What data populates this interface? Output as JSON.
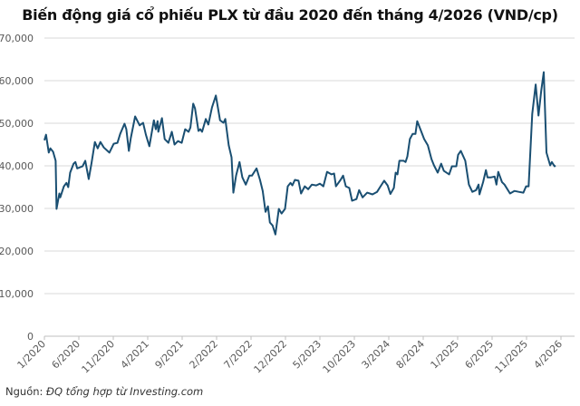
{
  "title": "Biến động giá cổ phiếu PLX từ đầu 2020 đến tháng 4/2026 (VND/cp)",
  "source": {
    "prefix": "Nguồn:",
    "text": "ĐQ tổng hợp từ Investing.com"
  },
  "colors": {
    "line": "#1a4f72",
    "grid": "#d9d9d9",
    "axis_text": "#595959"
  },
  "chart_data": {
    "type": "line",
    "title": "Biến động giá cổ phiếu PLX từ đầu 2020 đến tháng 4/2026 (VND/cp)",
    "xlabel": "",
    "ylabel": "",
    "ylim": [
      0,
      70000
    ],
    "xlim": [
      "2020-01-01",
      "2026-04-01"
    ],
    "grid": "horizontal",
    "yticks": [
      "0",
      "10,000",
      "20,000",
      "30,000",
      "40,000",
      "50,000",
      "60,000",
      "70,000"
    ],
    "xticks": [
      "1/2020",
      "6/2020",
      "11/2020",
      "4/2021",
      "9/2021",
      "2/2022",
      "7/2022",
      "12/2022",
      "5/2023",
      "10/2023",
      "3/2024",
      "8/2024",
      "1/2025",
      "6/2025",
      "11/2025",
      "4/2026"
    ],
    "series": [
      {
        "points": [
          [
            "2020-01-01",
            46000
          ],
          [
            "2020-01-08",
            47300
          ],
          [
            "2020-01-20",
            43100
          ],
          [
            "2020-01-27",
            44100
          ],
          [
            "2020-02-09",
            43300
          ],
          [
            "2020-02-20",
            41200
          ],
          [
            "2020-02-24",
            29900
          ],
          [
            "2020-03-06",
            33500
          ],
          [
            "2020-03-10",
            32600
          ],
          [
            "2020-03-26",
            35200
          ],
          [
            "2020-04-07",
            36000
          ],
          [
            "2020-04-15",
            35000
          ],
          [
            "2020-04-23",
            38400
          ],
          [
            "2020-05-08",
            40500
          ],
          [
            "2020-05-16",
            40900
          ],
          [
            "2020-05-24",
            39400
          ],
          [
            "2020-06-17",
            39900
          ],
          [
            "2020-06-29",
            41200
          ],
          [
            "2020-07-14",
            36900
          ],
          [
            "2020-07-26",
            40500
          ],
          [
            "2020-08-11",
            45600
          ],
          [
            "2020-08-23",
            44100
          ],
          [
            "2020-09-05",
            45600
          ],
          [
            "2020-09-20",
            44300
          ],
          [
            "2020-10-14",
            43100
          ],
          [
            "2020-11-03",
            45200
          ],
          [
            "2020-11-19",
            45400
          ],
          [
            "2020-12-01",
            47500
          ],
          [
            "2020-12-20",
            49900
          ],
          [
            "2020-12-28",
            48600
          ],
          [
            "2021-01-09",
            43500
          ],
          [
            "2021-01-17",
            46500
          ],
          [
            "2021-02-06",
            51600
          ],
          [
            "2021-02-26",
            49500
          ],
          [
            "2021-03-11",
            50100
          ],
          [
            "2021-03-23",
            47300
          ],
          [
            "2021-04-08",
            44600
          ],
          [
            "2021-04-28",
            50700
          ],
          [
            "2021-05-06",
            48600
          ],
          [
            "2021-05-14",
            50500
          ],
          [
            "2021-05-17",
            48000
          ],
          [
            "2021-06-03",
            51200
          ],
          [
            "2021-06-15",
            46300
          ],
          [
            "2021-07-01",
            45400
          ],
          [
            "2021-07-16",
            48000
          ],
          [
            "2021-07-28",
            45000
          ],
          [
            "2021-08-13",
            45800
          ],
          [
            "2021-08-29",
            45400
          ],
          [
            "2021-09-14",
            48600
          ],
          [
            "2021-09-29",
            48000
          ],
          [
            "2021-10-07",
            49000
          ],
          [
            "2021-10-19",
            54600
          ],
          [
            "2021-10-27",
            53500
          ],
          [
            "2021-11-12",
            48200
          ],
          [
            "2021-11-20",
            48600
          ],
          [
            "2021-11-28",
            48000
          ],
          [
            "2021-12-14",
            51000
          ],
          [
            "2021-12-25",
            49700
          ],
          [
            "2022-01-11",
            53700
          ],
          [
            "2022-01-28",
            56500
          ],
          [
            "2022-02-16",
            50700
          ],
          [
            "2022-03-01",
            50100
          ],
          [
            "2022-03-09",
            51000
          ],
          [
            "2022-03-24",
            44800
          ],
          [
            "2022-04-06",
            42000
          ],
          [
            "2022-04-14",
            33700
          ],
          [
            "2022-04-26",
            37700
          ],
          [
            "2022-05-11",
            40900
          ],
          [
            "2022-05-23",
            37300
          ],
          [
            "2022-06-08",
            35600
          ],
          [
            "2022-06-24",
            37700
          ],
          [
            "2022-07-05",
            37700
          ],
          [
            "2022-07-25",
            39400
          ],
          [
            "2022-08-10",
            36700
          ],
          [
            "2022-08-22",
            34100
          ],
          [
            "2022-09-04",
            29200
          ],
          [
            "2022-09-15",
            30500
          ],
          [
            "2022-09-23",
            26700
          ],
          [
            "2022-10-05",
            26000
          ],
          [
            "2022-10-17",
            23900
          ],
          [
            "2022-11-02",
            29900
          ],
          [
            "2022-11-14",
            28800
          ],
          [
            "2022-11-29",
            29900
          ],
          [
            "2022-12-11",
            35200
          ],
          [
            "2022-12-23",
            36000
          ],
          [
            "2023-01-01",
            35400
          ],
          [
            "2023-01-12",
            36700
          ],
          [
            "2023-01-28",
            36500
          ],
          [
            "2023-02-09",
            33500
          ],
          [
            "2023-02-25",
            35200
          ],
          [
            "2023-03-10",
            34500
          ],
          [
            "2023-03-26",
            35600
          ],
          [
            "2023-04-15",
            35400
          ],
          [
            "2023-05-01",
            35800
          ],
          [
            "2023-05-16",
            35200
          ],
          [
            "2023-06-02",
            38600
          ],
          [
            "2023-06-21",
            38000
          ],
          [
            "2023-07-03",
            38200
          ],
          [
            "2023-07-11",
            35200
          ],
          [
            "2023-08-01",
            36700
          ],
          [
            "2023-08-12",
            37700
          ],
          [
            "2023-08-24",
            35200
          ],
          [
            "2023-09-09",
            34800
          ],
          [
            "2023-09-21",
            31800
          ],
          [
            "2023-10-10",
            32200
          ],
          [
            "2023-10-22",
            34300
          ],
          [
            "2023-11-07",
            32600
          ],
          [
            "2023-11-27",
            33700
          ],
          [
            "2023-12-20",
            33300
          ],
          [
            "2024-01-10",
            33900
          ],
          [
            "2024-01-25",
            35200
          ],
          [
            "2024-02-11",
            36500
          ],
          [
            "2024-02-26",
            35400
          ],
          [
            "2024-03-08",
            33400
          ],
          [
            "2024-03-23",
            34800
          ],
          [
            "2024-04-01",
            38400
          ],
          [
            "2024-04-09",
            38000
          ],
          [
            "2024-04-17",
            41200
          ],
          [
            "2024-05-06",
            41200
          ],
          [
            "2024-05-14",
            40900
          ],
          [
            "2024-05-22",
            42200
          ],
          [
            "2024-06-03",
            46300
          ],
          [
            "2024-06-15",
            47500
          ],
          [
            "2024-06-27",
            47500
          ],
          [
            "2024-07-05",
            50500
          ],
          [
            "2024-07-20",
            48400
          ],
          [
            "2024-08-05",
            46300
          ],
          [
            "2024-08-21",
            44800
          ],
          [
            "2024-09-07",
            41600
          ],
          [
            "2024-09-18",
            40100
          ],
          [
            "2024-10-04",
            38400
          ],
          [
            "2024-10-19",
            40500
          ],
          [
            "2024-11-01",
            38800
          ],
          [
            "2024-11-24",
            38000
          ],
          [
            "2024-12-06",
            39900
          ],
          [
            "2024-12-25",
            39900
          ],
          [
            "2025-01-03",
            42600
          ],
          [
            "2025-01-15",
            43500
          ],
          [
            "2025-02-04",
            41200
          ],
          [
            "2025-02-20",
            35600
          ],
          [
            "2025-03-05",
            33900
          ],
          [
            "2025-03-21",
            34300
          ],
          [
            "2025-04-02",
            35600
          ],
          [
            "2025-04-06",
            33300
          ],
          [
            "2025-04-22",
            36200
          ],
          [
            "2025-05-04",
            39000
          ],
          [
            "2025-05-11",
            37300
          ],
          [
            "2025-05-27",
            37300
          ],
          [
            "2025-06-12",
            37500
          ],
          [
            "2025-06-20",
            35600
          ],
          [
            "2025-06-28",
            38600
          ],
          [
            "2025-07-14",
            36200
          ],
          [
            "2025-07-25",
            35600
          ],
          [
            "2025-08-19",
            33500
          ],
          [
            "2025-09-08",
            34100
          ],
          [
            "2025-09-27",
            33900
          ],
          [
            "2025-10-17",
            33700
          ],
          [
            "2025-10-29",
            35200
          ],
          [
            "2025-11-10",
            35200
          ],
          [
            "2025-11-26",
            52200
          ],
          [
            "2025-12-11",
            59100
          ],
          [
            "2025-12-23",
            51800
          ],
          [
            "2026-01-05",
            57600
          ],
          [
            "2026-01-16",
            62000
          ],
          [
            "2026-01-28",
            43100
          ],
          [
            "2026-02-14",
            40100
          ],
          [
            "2026-02-21",
            40900
          ],
          [
            "2026-03-03",
            39900
          ],
          [
            "2026-03-07",
            40100
          ]
        ]
      }
    ]
  }
}
